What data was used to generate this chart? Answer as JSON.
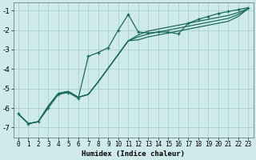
{
  "xlabel": "Humidex (Indice chaleur)",
  "background_color": "#ceeaea",
  "grid_color": "#aacfcf",
  "line_color": "#1a6b5e",
  "xlim": [
    -0.5,
    23.5
  ],
  "ylim": [
    -7.5,
    -0.6
  ],
  "yticks": [
    -7,
    -6,
    -5,
    -4,
    -3,
    -2,
    -1
  ],
  "xticks": [
    0,
    1,
    2,
    3,
    4,
    5,
    6,
    7,
    8,
    9,
    10,
    11,
    12,
    13,
    14,
    15,
    16,
    17,
    18,
    19,
    20,
    21,
    22,
    23
  ],
  "series1_x": [
    0,
    1,
    2,
    3,
    4,
    5,
    6,
    7,
    8,
    9,
    10,
    11,
    12,
    13,
    14,
    15,
    16,
    17,
    18,
    19,
    20,
    21,
    22,
    23
  ],
  "series1_y": [
    -6.3,
    -6.8,
    -6.7,
    -6.0,
    -5.3,
    -5.2,
    -5.5,
    -3.35,
    -3.15,
    -2.9,
    -2.0,
    -1.2,
    -2.1,
    -2.15,
    -2.1,
    -2.1,
    -2.2,
    -1.65,
    -1.45,
    -1.3,
    -1.15,
    -1.05,
    -0.95,
    -0.85
  ],
  "series2_x": [
    0,
    1,
    2,
    3,
    4,
    5,
    6,
    7,
    8,
    9,
    10,
    11,
    12,
    13,
    14,
    15,
    16,
    17,
    18,
    19,
    20,
    21,
    22,
    23
  ],
  "series2_y": [
    -6.3,
    -6.8,
    -6.7,
    -5.9,
    -5.25,
    -5.15,
    -5.45,
    -5.3,
    -4.65,
    -3.95,
    -3.25,
    -2.55,
    -2.25,
    -2.05,
    -1.95,
    -1.85,
    -1.75,
    -1.65,
    -1.55,
    -1.45,
    -1.35,
    -1.25,
    -1.1,
    -0.9
  ],
  "series3_x": [
    0,
    1,
    2,
    3,
    4,
    5,
    6,
    7,
    8,
    9,
    10,
    11,
    12,
    13,
    14,
    15,
    16,
    17,
    18,
    19,
    20,
    21,
    22,
    23
  ],
  "series3_y": [
    -6.3,
    -6.8,
    -6.7,
    -5.9,
    -5.25,
    -5.15,
    -5.45,
    -5.3,
    -4.65,
    -3.95,
    -3.25,
    -2.55,
    -2.35,
    -2.2,
    -2.1,
    -2.0,
    -1.9,
    -1.8,
    -1.7,
    -1.6,
    -1.5,
    -1.4,
    -1.2,
    -0.9
  ],
  "series4_x": [
    0,
    1,
    2,
    3,
    4,
    5,
    6,
    7,
    8,
    9,
    10,
    11,
    12,
    13,
    14,
    15,
    16,
    17,
    18,
    19,
    20,
    21,
    22,
    23
  ],
  "series4_y": [
    -6.3,
    -6.8,
    -6.7,
    -5.9,
    -5.25,
    -5.15,
    -5.45,
    -5.3,
    -4.65,
    -3.95,
    -3.25,
    -2.55,
    -2.5,
    -2.35,
    -2.25,
    -2.15,
    -2.05,
    -1.95,
    -1.85,
    -1.75,
    -1.65,
    -1.55,
    -1.3,
    -0.9
  ]
}
